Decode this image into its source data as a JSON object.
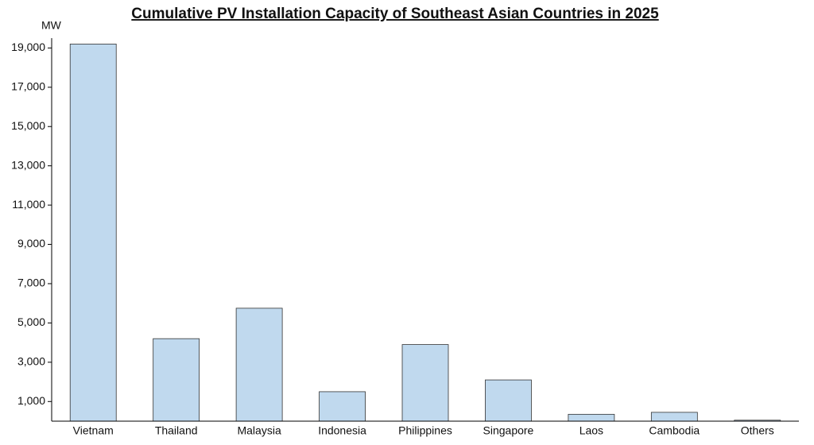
{
  "chart_data": {
    "type": "bar",
    "title": "Cumulative PV Installation Capacity of Southeast Asian Countries in 2025",
    "y_label": "MW",
    "categories": [
      "Vietnam",
      "Thailand",
      "Malaysia",
      "Indonesia",
      "Philippines",
      "Singapore",
      "Laos",
      "Cambodia",
      "Others"
    ],
    "values": [
      19200,
      4200,
      5750,
      1500,
      3900,
      2100,
      350,
      450,
      50
    ],
    "color": "#c0d9ee",
    "ylim": [
      0,
      19500
    ],
    "yticks": [
      {
        "value": 1000,
        "label": "1,000"
      },
      {
        "value": 3000,
        "label": "3,000"
      },
      {
        "value": 5000,
        "label": "5,000"
      },
      {
        "value": 7000,
        "label": "7,000"
      },
      {
        "value": 9000,
        "label": "9,000"
      },
      {
        "value": 11000,
        "label": "11,000"
      },
      {
        "value": 13000,
        "label": "13,000"
      },
      {
        "value": 15000,
        "label": "15,000"
      },
      {
        "value": 17000,
        "label": "17,000"
      },
      {
        "value": 19000,
        "label": "19,000"
      }
    ],
    "grid": false
  }
}
